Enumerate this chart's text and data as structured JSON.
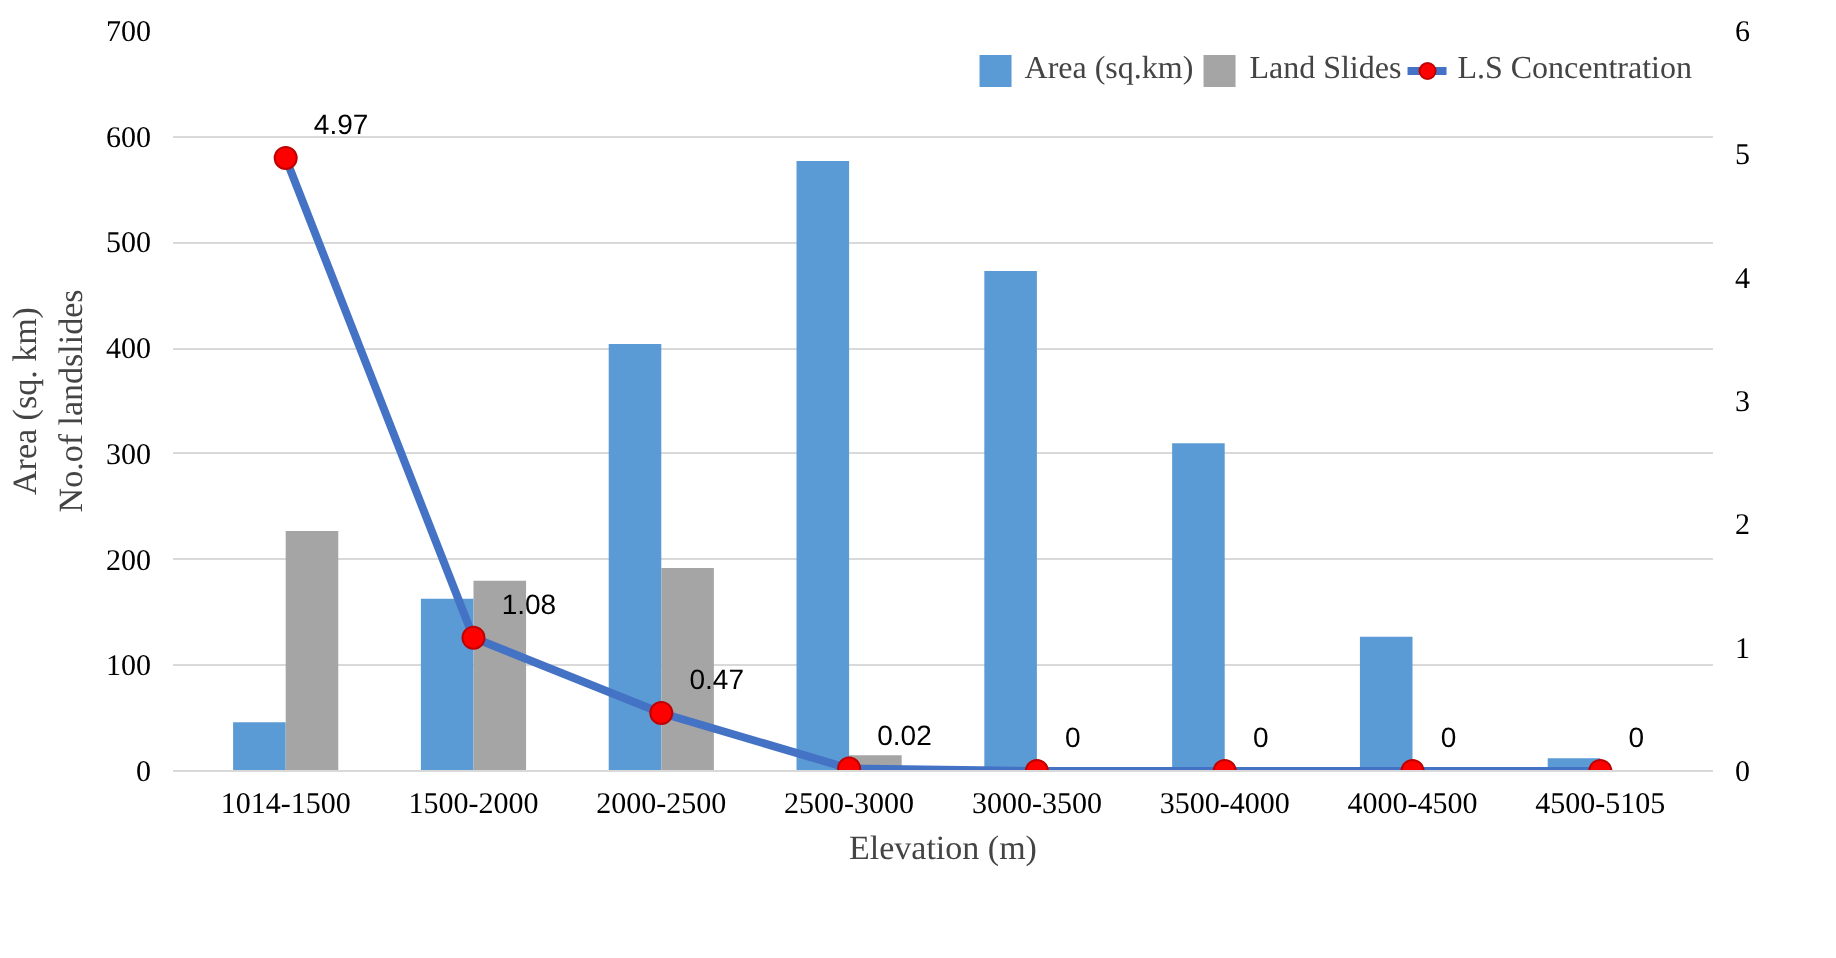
{
  "chart_data": {
    "type": "bar",
    "xlabel": "Elevation (m)",
    "ylabel": "Area (sq. km)\nNo.of landslides",
    "categories": [
      "1014-1500",
      "1500-2000",
      "2000-2500",
      "2500-3000",
      "3000-3500",
      "3500-4000",
      "4000-4500",
      "4500-5105"
    ],
    "series": [
      {
        "name": "Area (sq.km)",
        "color": "#5b9bd5",
        "values": [
          46,
          163,
          404,
          577,
          473,
          310,
          127,
          12
        ]
      },
      {
        "name": "Land Slides",
        "color": "#a5a5a5",
        "values": [
          227,
          180,
          192,
          15,
          0,
          0,
          0,
          0
        ]
      },
      {
        "name": "L.S Concentration",
        "type": "line",
        "axis": "y2",
        "color": "#4472c4",
        "marker": "circle",
        "values": [
          4.97,
          1.08,
          0.47,
          0.02,
          0,
          0,
          0,
          0
        ],
        "value_labels": [
          "4.97",
          "1.08",
          "0.47",
          "0.02",
          "0",
          "0",
          "0",
          "0"
        ]
      }
    ],
    "ylim": [
      0,
      700
    ],
    "yticks": [
      0,
      100,
      200,
      300,
      400,
      500,
      600,
      700
    ],
    "y2lim": [
      0,
      6
    ],
    "y2ticks": [
      0,
      1,
      2,
      3,
      4,
      5,
      6
    ],
    "grid": "y",
    "legend": "top right"
  }
}
